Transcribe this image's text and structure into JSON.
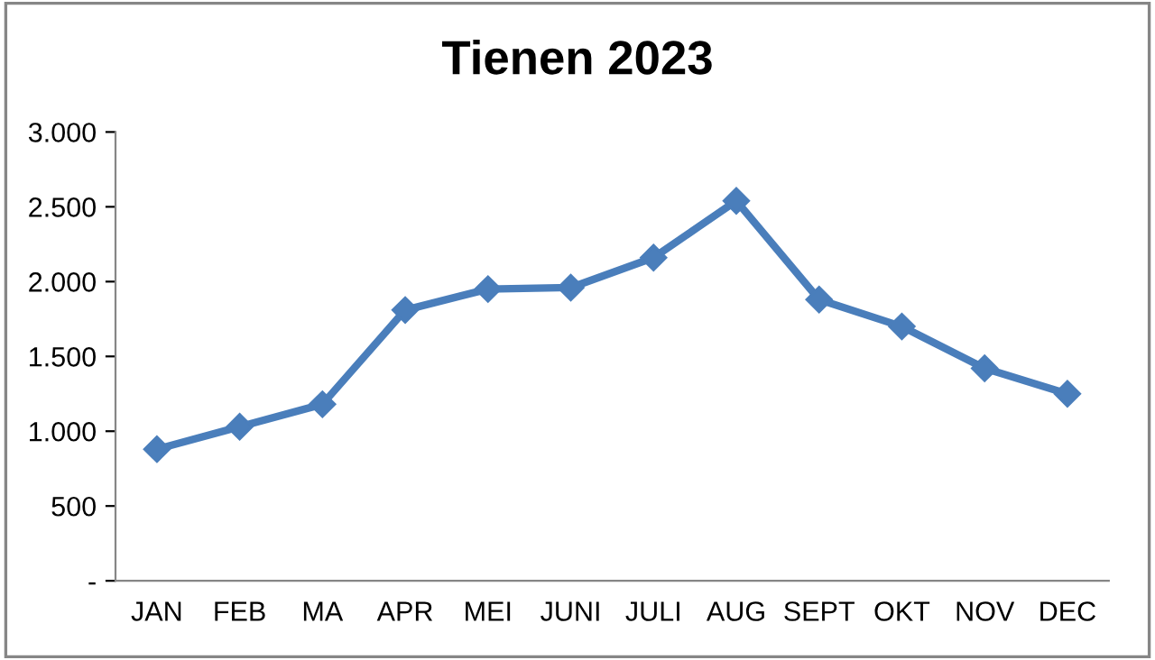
{
  "chart_data": {
    "type": "line",
    "title": "Tienen 2023",
    "categories": [
      "JAN",
      "FEB",
      "MA",
      "APR",
      "MEI",
      "JUNI",
      "JULI",
      "AUG",
      "SEPT",
      "OKT",
      "NOV",
      "DEC"
    ],
    "series": [
      {
        "color": "#4a7ebb",
        "values": [
          880,
          1030,
          1180,
          1810,
          1950,
          1960,
          2160,
          2540,
          1880,
          1700,
          1420,
          1250
        ]
      }
    ],
    "ylim": [
      0,
      3000
    ],
    "yticks": [
      {
        "value": 0,
        "label": "-"
      },
      {
        "value": 500,
        "label": "500"
      },
      {
        "value": 1000,
        "label": "1.000"
      },
      {
        "value": 1500,
        "label": "1.500"
      },
      {
        "value": 2000,
        "label": "2.000"
      },
      {
        "value": 2500,
        "label": "2.500"
      },
      {
        "value": 3000,
        "label": "3.000"
      }
    ],
    "grid": false,
    "legend": false,
    "marker": "diamond",
    "line_style": "solid"
  }
}
